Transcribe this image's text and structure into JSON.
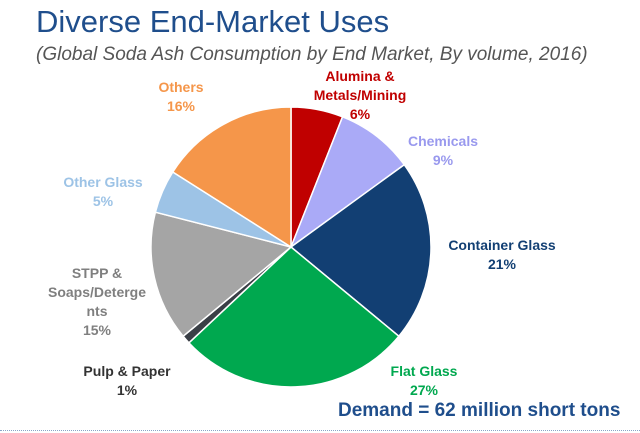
{
  "header": {
    "title": "Diverse End-Market Uses",
    "subtitle": "(Global Soda Ash Consumption by End Market, By volume, 2016)"
  },
  "footer": {
    "demand_text": "Demand = 62 million short tons"
  },
  "chart_data": {
    "type": "pie",
    "title": "",
    "unit": "%",
    "slices": [
      {
        "label": "Alumina & Metals/Mining",
        "value": 6,
        "value_label": "6%",
        "color": "#c00000"
      },
      {
        "label": "Chemicals",
        "value": 9,
        "value_label": "9%",
        "color": "#aaaaf7"
      },
      {
        "label": "Container Glass",
        "value": 21,
        "value_label": "21%",
        "color": "#123f73"
      },
      {
        "label": "Flat Glass",
        "value": 27,
        "value_label": "27%",
        "color": "#00a84f"
      },
      {
        "label": "Pulp & Paper",
        "value": 1,
        "value_label": "1%",
        "color": "#3a3f46"
      },
      {
        "label": "STPP & Soaps/Detergents",
        "value": 15,
        "value_label": "15%",
        "color": "#a5a5a5"
      },
      {
        "label": "Other Glass",
        "value": 5,
        "value_label": "5%",
        "color": "#9dc3e6"
      },
      {
        "label": "Others",
        "value": 16,
        "value_label": "16%",
        "color": "#f5964a"
      }
    ],
    "label_lines": [
      [
        "Alumina &",
        "Metals/Mining"
      ],
      [
        "Chemicals"
      ],
      [
        "Container Glass"
      ],
      [
        "Flat Glass"
      ],
      [
        "Pulp & Paper"
      ],
      [
        "STPP &",
        "Soaps/Deterge",
        "nts"
      ],
      [
        "Other Glass"
      ],
      [
        "Others"
      ]
    ],
    "label_colors": [
      "#c00000",
      "#9999ee",
      "#123f73",
      "#00a84f",
      "#333333",
      "#7f7f7f",
      "#9dc3e6",
      "#f5964a"
    ],
    "legend": "none"
  }
}
